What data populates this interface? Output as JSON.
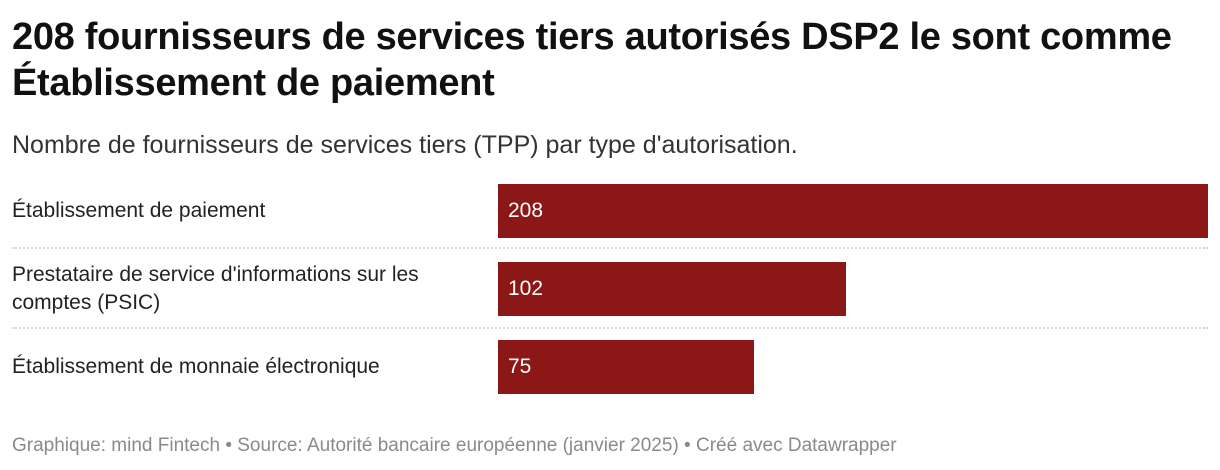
{
  "title": "208 fournisseurs de services tiers autorisés DSP2 le sont comme Établissement de paiement",
  "subtitle": "Nombre de fournisseurs de services tiers (TPP) par type d'autorisation.",
  "footer": "Graphique: mind Fintech • Source: Autorité bancaire européenne (janvier 2025) • Créé avec Datawrapper",
  "colors": {
    "bar": "#8b1717",
    "divider": "#d6d6d6"
  },
  "chart_data": {
    "type": "bar",
    "orientation": "horizontal",
    "categories": [
      "Établissement de paiement",
      "Prestataire de service d'informations sur les comptes (PSIC)",
      "Établissement de monnaie électronique"
    ],
    "values": [
      208,
      102,
      75
    ],
    "value_labels": [
      "208",
      "102",
      "75"
    ],
    "xlim": [
      0,
      208
    ],
    "grid": false,
    "legend": "none"
  }
}
